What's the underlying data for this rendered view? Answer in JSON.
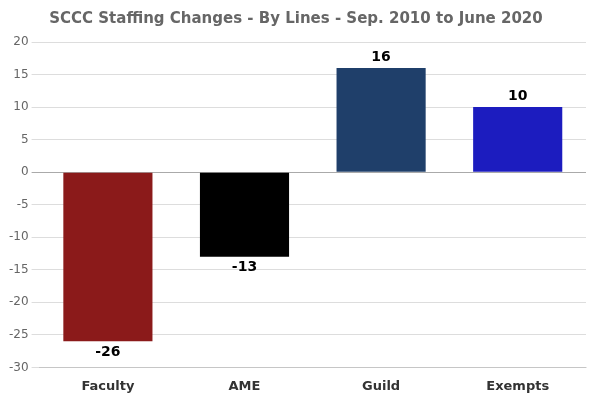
{
  "chart_data": {
    "type": "bar",
    "title": "SCCC Staffing Changes - By Lines - Sep. 2010 to June 2020",
    "categories": [
      "Faculty",
      "AME",
      "Guild",
      "Exempts"
    ],
    "values": [
      -26,
      -13,
      16,
      10
    ],
    "colors": [
      "#8B1A1A",
      "#000000",
      "#1F3F6A",
      "#1C1CBF"
    ],
    "ylim": [
      -30,
      20
    ],
    "yticks": [
      -30,
      -25,
      -20,
      -15,
      -10,
      -5,
      0,
      5,
      10,
      15,
      20
    ],
    "grid": true,
    "data_labels": true
  }
}
